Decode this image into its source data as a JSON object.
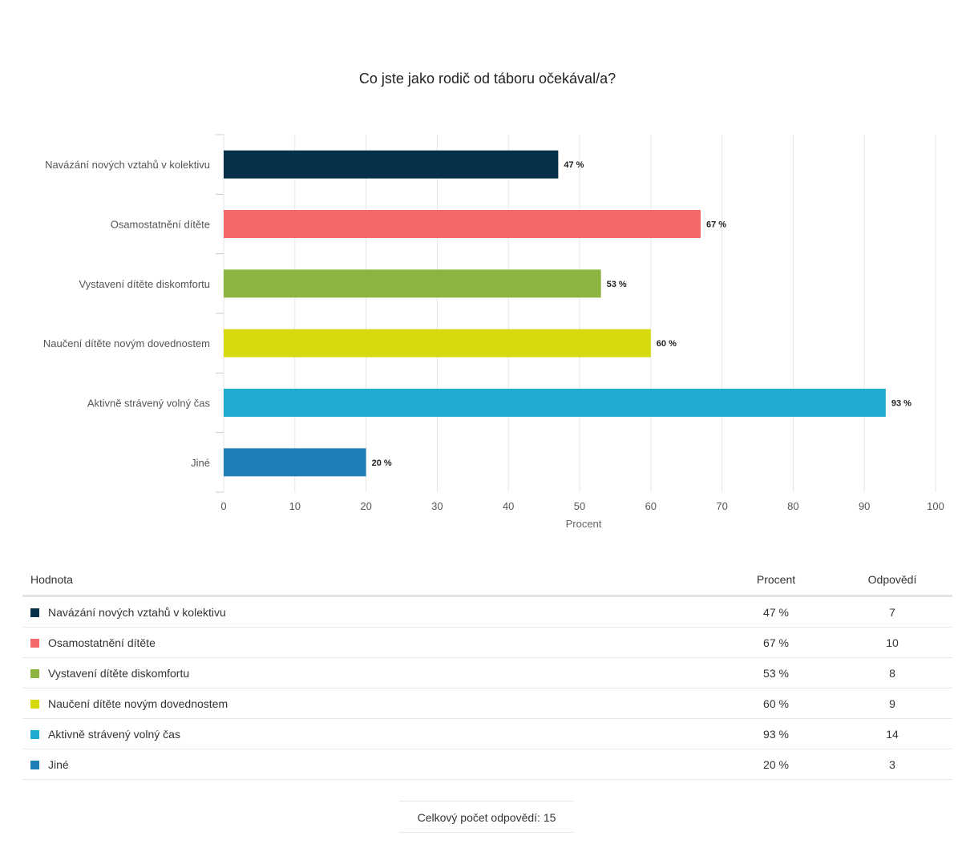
{
  "chart_data": {
    "type": "bar",
    "orientation": "horizontal",
    "title": "Co jste jako rodič od táboru očekával/a?",
    "xlabel": "Procent",
    "ylabel": "",
    "xlim": [
      0,
      100
    ],
    "ticks": [
      "0",
      "10",
      "20",
      "30",
      "40",
      "50",
      "60",
      "70",
      "80",
      "90",
      "100"
    ],
    "grid": true,
    "value_suffix": " %",
    "categories": [
      "Navázání nových vztahů v kolektivu",
      "Osamostatnění dítěte",
      "Vystavení dítěte diskomfortu",
      "Naučení dítěte novým dovednostem",
      "Aktivně strávený volný čas",
      "Jiné"
    ],
    "values": [
      47,
      67,
      53,
      60,
      93,
      20
    ],
    "colors": [
      "#07304a",
      "#f66767",
      "#8db441",
      "#d6d90c",
      "#1fabcf",
      "#1e7fb8"
    ]
  },
  "table": {
    "headers": [
      "Hodnota",
      "Procent",
      "Odpovědí"
    ],
    "rows": [
      {
        "label": "Navázání nových vztahů v kolektivu",
        "percent": "47 %",
        "count": "7",
        "color": "#07304a"
      },
      {
        "label": "Osamostatnění dítěte",
        "percent": "67 %",
        "count": "10",
        "color": "#f66767"
      },
      {
        "label": "Vystavení dítěte diskomfortu",
        "percent": "53 %",
        "count": "8",
        "color": "#8db441"
      },
      {
        "label": "Naučení dítěte novým dovednostem",
        "percent": "60 %",
        "count": "9",
        "color": "#d6d90c"
      },
      {
        "label": "Aktivně strávený volný čas",
        "percent": "93 %",
        "count": "14",
        "color": "#1fabcf"
      },
      {
        "label": "Jiné",
        "percent": "20 %",
        "count": "3",
        "color": "#1e7fb8"
      }
    ]
  },
  "total_label": "Celkový počet odpovědí: 15"
}
